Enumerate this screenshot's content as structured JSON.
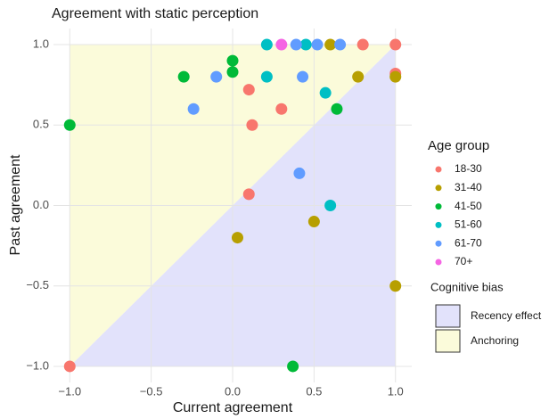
{
  "chart_data": {
    "type": "scatter",
    "title": "Agreement with static perception",
    "x_label": "Current agreement",
    "y_label": "Past agreement",
    "xlim": [
      -1.1,
      1.1
    ],
    "ylim": [
      -1.1,
      1.1
    ],
    "xticks": [
      {
        "value": -1.0,
        "label": "−1.0"
      },
      {
        "value": -0.5,
        "label": "−0.5"
      },
      {
        "value": 0.0,
        "label": "0.0"
      },
      0.5,
      {
        "value": 1.0,
        "label": "1.0"
      }
    ],
    "yticks": [
      {
        "value": -1.0,
        "label": "−1.0"
      },
      {
        "value": -0.5,
        "label": "−0.5"
      },
      {
        "value": 0.0,
        "label": "0.0"
      },
      0.5,
      {
        "value": 1.0,
        "label": "1.0"
      }
    ],
    "grid": true,
    "legend_title": "Age group",
    "series": [
      {
        "name": "18-30",
        "color": "#F8766D",
        "x": [
          0.8,
          1.0,
          1.0,
          0.1,
          0.12,
          0.3,
          0.1,
          -1.0
        ],
        "values": [
          1.0,
          1.0,
          0.82,
          0.72,
          0.5,
          0.6,
          0.07,
          -1.0
        ]
      },
      {
        "name": "31-40",
        "color": "#B79F00",
        "x": [
          0.6,
          0.77,
          1.0,
          0.5,
          0.03,
          1.0
        ],
        "values": [
          1.0,
          0.8,
          0.8,
          -0.1,
          -0.2,
          -0.5
        ]
      },
      {
        "name": "41-50",
        "color": "#00BA38",
        "x": [
          0.0,
          0.0,
          -0.3,
          -1.0,
          0.64,
          0.37
        ],
        "values": [
          0.9,
          0.83,
          0.8,
          0.5,
          0.6,
          -1.0
        ]
      },
      {
        "name": "51-60",
        "color": "#00BFC4",
        "x": [
          0.21,
          0.45,
          0.21,
          0.57,
          0.6
        ],
        "values": [
          1.0,
          1.0,
          0.8,
          0.7,
          0.0
        ]
      },
      {
        "name": "61-70",
        "color": "#619CFF",
        "x": [
          0.39,
          0.52,
          0.66,
          -0.1,
          0.43,
          -0.24,
          0.41
        ],
        "values": [
          1.0,
          1.0,
          1.0,
          0.8,
          0.8,
          0.6,
          0.2
        ]
      },
      {
        "name": "70+",
        "color": "#F564E3",
        "x": [
          0.3
        ],
        "values": [
          1.0
        ]
      }
    ],
    "regions_title": "Cognitive bias",
    "regions": [
      {
        "name": "Recency effect",
        "color": "#e2e2fb"
      },
      {
        "name": "Anchoring",
        "color": "#fbfbda"
      }
    ]
  }
}
